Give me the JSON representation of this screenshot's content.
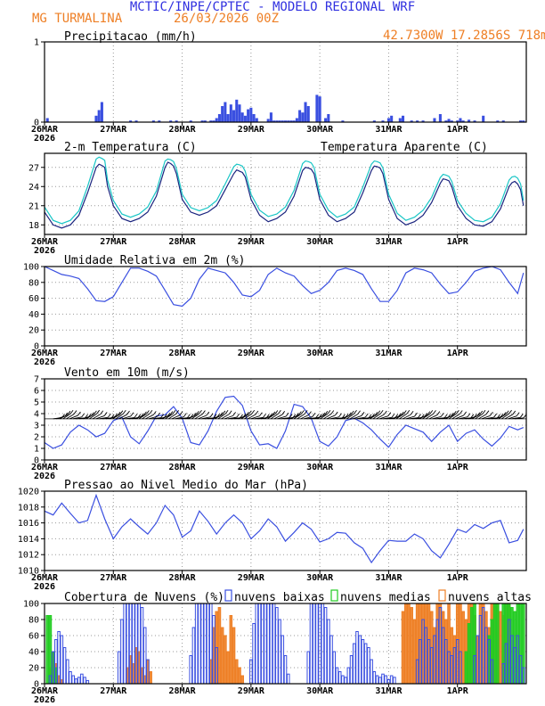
{
  "header": {
    "title": "MCTIC/INPE/CPTEC - MODELO REGIONAL WRF",
    "location": "MG TURMALINA",
    "run": "26/03/2026 00Z",
    "coords": "42.7300W 17.2856S 718m"
  },
  "colors": {
    "title": "#3030e0",
    "orange": "#ee7f25",
    "blue": "#3a4fe0",
    "navy": "#1a237e",
    "cyan": "#19c6c6",
    "green": "#22cc22",
    "grid": "#999999"
  },
  "x_axis": {
    "ticks": [
      "26MAR",
      "27MAR",
      "28MAR",
      "29MAR",
      "30MAR",
      "31MAR",
      "1APR"
    ],
    "year": "2026",
    "hours_per_tick": 24,
    "total_hours": 168
  },
  "chart_data": [
    {
      "id": "precip",
      "type": "bar",
      "title": "Precipitacao (mm/h)",
      "ylim": [
        0,
        1
      ],
      "yticks": [
        "0",
        "1"
      ],
      "x_hours": [
        1,
        18,
        19,
        20,
        30,
        32,
        38,
        40,
        44,
        46,
        51,
        55,
        56,
        58,
        59,
        60,
        61,
        62,
        63,
        64,
        65,
        66,
        67,
        68,
        69,
        70,
        71,
        72,
        73,
        74,
        78,
        79,
        80,
        81,
        82,
        83,
        84,
        85,
        86,
        87,
        88,
        89,
        90,
        91,
        92,
        95,
        96,
        98,
        99,
        104,
        115,
        118,
        120,
        121,
        124,
        125,
        128,
        130,
        132,
        136,
        138,
        140,
        141,
        142,
        144,
        145,
        146,
        148,
        150,
        153,
        158,
        160,
        166,
        167
      ],
      "values": [
        0.05,
        0.08,
        0.15,
        0.25,
        0.02,
        0.02,
        0.02,
        0.02,
        0.02,
        0.02,
        0.02,
        0.02,
        0.02,
        0.02,
        0.02,
        0.05,
        0.1,
        0.2,
        0.25,
        0.1,
        0.22,
        0.15,
        0.28,
        0.22,
        0.12,
        0.08,
        0.16,
        0.18,
        0.1,
        0.05,
        0.04,
        0.12,
        0.02,
        0.02,
        0.02,
        0.02,
        0.02,
        0.02,
        0.02,
        0.02,
        0.05,
        0.15,
        0.12,
        0.25,
        0.2,
        0.34,
        0.32,
        0.05,
        0.1,
        0.02,
        0.02,
        0.02,
        0.05,
        0.08,
        0.05,
        0.08,
        0.02,
        0.02,
        0.02,
        0.05,
        0.1,
        0.02,
        0.04,
        0.02,
        0.02,
        0.05,
        0.02,
        0.03,
        0.02,
        0.08,
        0.02,
        0.02,
        0.02,
        0.02
      ]
    },
    {
      "id": "temp",
      "type": "line",
      "title": "2-m Temperatura (C)",
      "legend": "Temperatura Aparente (C)",
      "ylim": [
        16.5,
        29.2
      ],
      "yticks": [
        "18",
        "21",
        "24",
        "27"
      ],
      "x_hours": [
        0,
        3,
        6,
        9,
        12,
        15,
        18,
        19,
        20,
        21,
        22,
        24,
        27,
        30,
        33,
        36,
        39,
        42,
        43,
        44,
        45,
        46,
        48,
        51,
        54,
        57,
        60,
        63,
        66,
        67,
        68,
        69,
        70,
        72,
        75,
        78,
        81,
        84,
        87,
        90,
        91,
        92,
        93,
        94,
        96,
        99,
        102,
        105,
        108,
        111,
        114,
        115,
        116,
        117,
        118,
        120,
        123,
        126,
        129,
        132,
        135,
        138,
        139,
        140,
        141,
        142,
        144,
        147,
        150,
        153,
        156,
        159,
        162,
        163,
        164,
        165,
        166,
        167
      ],
      "series": [
        {
          "name": "2-m Temperatura (C)",
          "values": [
            20,
            18,
            17.5,
            18,
            19.5,
            23,
            27.0,
            27.5,
            27.3,
            27.0,
            24,
            21,
            19,
            18.5,
            19,
            20,
            22.5,
            27.0,
            27.8,
            27.6,
            27.2,
            26,
            22,
            20,
            19.5,
            20,
            21,
            23.5,
            26.0,
            26.6,
            26.4,
            26.2,
            25.5,
            22,
            19.5,
            18.5,
            19,
            20,
            22.5,
            26.5,
            27.0,
            26.9,
            26.7,
            26,
            22,
            19.5,
            18.5,
            19,
            20,
            23,
            26.5,
            27.2,
            27.1,
            26.9,
            26,
            22,
            19,
            18,
            18.5,
            19.5,
            21.5,
            24.5,
            25.2,
            25.1,
            24.9,
            24,
            21,
            19,
            18,
            17.8,
            18.5,
            20.5,
            24.0,
            24.6,
            24.8,
            24.4,
            23.5,
            21
          ]
        },
        {
          "name": "Temperatura Aparente (C)",
          "values": [
            20.8,
            18.7,
            18.2,
            18.7,
            20.2,
            24,
            28.3,
            28.6,
            28.4,
            28.1,
            25,
            21.8,
            19.7,
            19.2,
            19.7,
            20.8,
            23.3,
            28.0,
            28.3,
            28.2,
            27.9,
            26.8,
            22.8,
            20.7,
            20.2,
            20.7,
            21.8,
            24.4,
            27.1,
            27.5,
            27.4,
            27.2,
            26.4,
            22.8,
            20.3,
            19.3,
            19.7,
            20.8,
            23.4,
            27.6,
            28.0,
            27.9,
            27.7,
            27.0,
            22.8,
            20.3,
            19.2,
            19.7,
            20.8,
            23.9,
            27.5,
            28.0,
            27.9,
            27.7,
            26.9,
            22.8,
            19.8,
            18.7,
            19.2,
            20.3,
            22.3,
            25.4,
            25.9,
            25.8,
            25.6,
            24.8,
            21.8,
            19.8,
            18.7,
            18.5,
            19.2,
            21.3,
            25.0,
            25.5,
            25.6,
            25.3,
            24.4,
            21.8
          ]
        }
      ]
    },
    {
      "id": "rh",
      "type": "line",
      "title": "Umidade Relativa em 2m (%)",
      "ylim": [
        0,
        100
      ],
      "yticks": [
        "0",
        "20",
        "40",
        "60",
        "80",
        "100"
      ],
      "x_hours": [
        0,
        3,
        6,
        9,
        12,
        15,
        18,
        21,
        24,
        27,
        30,
        33,
        36,
        39,
        42,
        45,
        48,
        51,
        54,
        57,
        60,
        63,
        66,
        69,
        72,
        75,
        78,
        81,
        84,
        87,
        90,
        93,
        96,
        99,
        102,
        105,
        108,
        111,
        114,
        117,
        120,
        123,
        126,
        129,
        132,
        135,
        138,
        141,
        144,
        147,
        150,
        153,
        156,
        159,
        162,
        165,
        167
      ],
      "values": [
        100,
        95,
        90,
        88,
        85,
        72,
        57,
        56,
        62,
        80,
        98,
        98,
        94,
        88,
        70,
        52,
        50,
        60,
        84,
        98,
        95,
        92,
        80,
        64,
        62,
        70,
        90,
        98,
        92,
        88,
        76,
        66,
        70,
        80,
        95,
        98,
        95,
        90,
        72,
        56,
        56,
        70,
        92,
        98,
        96,
        92,
        78,
        66,
        68,
        80,
        94,
        98,
        100,
        96,
        80,
        66,
        92
      ]
    },
    {
      "id": "wind",
      "type": "line",
      "title": "Vento em 10m (m/s)",
      "ylim": [
        0,
        7
      ],
      "yticks": [
        "0",
        "1",
        "2",
        "3",
        "4",
        "5",
        "6",
        "7"
      ],
      "x_hours": [
        0,
        3,
        6,
        9,
        12,
        15,
        18,
        21,
        24,
        27,
        30,
        33,
        36,
        39,
        42,
        45,
        48,
        51,
        54,
        57,
        60,
        63,
        66,
        69,
        72,
        75,
        78,
        81,
        84,
        87,
        90,
        93,
        96,
        99,
        102,
        105,
        108,
        111,
        114,
        117,
        120,
        123,
        126,
        129,
        132,
        135,
        138,
        141,
        144,
        147,
        150,
        153,
        156,
        159,
        162,
        165,
        167
      ],
      "values": [
        1.5,
        1.0,
        1.3,
        2.4,
        3.0,
        2.6,
        2.0,
        2.3,
        3.4,
        3.7,
        2.0,
        1.4,
        2.5,
        3.8,
        3.9,
        4.6,
        3.6,
        1.5,
        1.3,
        2.5,
        4.2,
        5.4,
        5.5,
        4.7,
        2.5,
        1.3,
        1.4,
        1.0,
        2.5,
        4.8,
        4.6,
        3.6,
        1.6,
        1.2,
        2.0,
        3.4,
        3.6,
        3.2,
        2.6,
        1.8,
        1.1,
        2.2,
        3.0,
        2.7,
        2.4,
        1.6,
        2.4,
        3.0,
        1.6,
        2.3,
        2.6,
        1.8,
        1.2,
        1.9,
        2.9,
        2.6,
        2.8
      ]
    },
    {
      "id": "pressure",
      "type": "line",
      "title": "Pressao ao Nivel Medio do Mar (hPa)",
      "ylim": [
        1010,
        1020
      ],
      "yticks": [
        "1010",
        "1012",
        "1014",
        "1016",
        "1018",
        "1020"
      ],
      "x_hours": [
        0,
        3,
        6,
        9,
        12,
        15,
        18,
        21,
        24,
        27,
        30,
        33,
        36,
        39,
        42,
        45,
        48,
        51,
        54,
        57,
        60,
        63,
        66,
        69,
        72,
        75,
        78,
        81,
        84,
        87,
        90,
        93,
        96,
        99,
        102,
        105,
        108,
        111,
        114,
        117,
        120,
        123,
        126,
        129,
        132,
        135,
        138,
        141,
        144,
        147,
        150,
        153,
        156,
        159,
        162,
        165,
        167
      ],
      "values": [
        1017.5,
        1017.0,
        1018.5,
        1017.2,
        1016.0,
        1016.3,
        1019.5,
        1016.5,
        1014.0,
        1015.5,
        1016.5,
        1015.5,
        1014.6,
        1016.0,
        1018.2,
        1017.0,
        1014.2,
        1015.0,
        1017.5,
        1016.2,
        1014.6,
        1016.0,
        1017.0,
        1016.0,
        1014.0,
        1015.0,
        1016.5,
        1015.5,
        1013.7,
        1014.8,
        1016.0,
        1015.2,
        1013.6,
        1014.0,
        1014.8,
        1014.7,
        1013.5,
        1012.8,
        1011.0,
        1012.5,
        1013.8,
        1013.7,
        1013.7,
        1014.6,
        1014.0,
        1012.5,
        1011.6,
        1013.3,
        1015.2,
        1014.8,
        1015.8,
        1015.3,
        1016.0,
        1016.3,
        1013.5,
        1013.8,
        1015.2
      ]
    },
    {
      "id": "clouds",
      "type": "bar",
      "title": "Cobertura de Nuvens (%)",
      "ylim": [
        0,
        100
      ],
      "yticks": [
        "0",
        "20",
        "40",
        "60",
        "80",
        "100"
      ],
      "legend": [
        "nuvens baixas",
        "nuvens medias",
        "nuvens altas"
      ],
      "series": [
        {
          "name": "nuvens baixas",
          "color": "blue",
          "x_hours": [
            2,
            3,
            4,
            5,
            6,
            7,
            8,
            9,
            10,
            11,
            12,
            13,
            14,
            15,
            26,
            27,
            28,
            29,
            30,
            31,
            32,
            33,
            34,
            35,
            36,
            51,
            52,
            53,
            54,
            55,
            56,
            57,
            58,
            59,
            60,
            72,
            73,
            74,
            75,
            76,
            77,
            78,
            79,
            80,
            81,
            82,
            83,
            84,
            85,
            92,
            93,
            94,
            95,
            96,
            97,
            98,
            99,
            100,
            101,
            102,
            103,
            104,
            105,
            106,
            107,
            108,
            109,
            110,
            111,
            112,
            113,
            114,
            115,
            116,
            117,
            118,
            119,
            120,
            121,
            122,
            130,
            131,
            132,
            133,
            134,
            135,
            136,
            137,
            138,
            139,
            140,
            141,
            142,
            143,
            144,
            145,
            150,
            151,
            152,
            153,
            154,
            155,
            156,
            160,
            161,
            162,
            163,
            164,
            165,
            166,
            167
          ],
          "values": [
            10,
            40,
            55,
            65,
            60,
            45,
            30,
            15,
            10,
            6,
            8,
            12,
            8,
            4,
            40,
            80,
            100,
            100,
            100,
            100,
            100,
            100,
            95,
            70,
            30,
            35,
            70,
            100,
            100,
            100,
            100,
            100,
            100,
            85,
            45,
            30,
            75,
            100,
            100,
            100,
            100,
            100,
            100,
            100,
            95,
            80,
            60,
            35,
            12,
            40,
            100,
            100,
            100,
            100,
            100,
            95,
            80,
            60,
            40,
            20,
            15,
            10,
            8,
            20,
            35,
            50,
            65,
            60,
            55,
            50,
            45,
            30,
            15,
            10,
            8,
            12,
            10,
            5,
            10,
            8,
            30,
            55,
            80,
            70,
            55,
            45,
            60,
            80,
            95,
            70,
            55,
            40,
            35,
            45,
            55,
            40,
            35,
            60,
            85,
            95,
            70,
            55,
            30,
            25,
            50,
            80,
            60,
            45,
            60,
            35,
            20
          ]
        },
        {
          "name": "nuvens medias",
          "color": "green",
          "x_hours": [
            1,
            2,
            3,
            4,
            147,
            148,
            149,
            150,
            155,
            156,
            157,
            158,
            160,
            161,
            162,
            163,
            164,
            165,
            166,
            167
          ],
          "values": [
            85,
            85,
            40,
            20,
            40,
            75,
            95,
            100,
            60,
            80,
            100,
            100,
            100,
            100,
            100,
            95,
            90,
            100,
            100,
            100
          ]
        },
        {
          "name": "nuvens altas",
          "color": "orange",
          "x_hours": [
            2,
            3,
            4,
            5,
            6,
            29,
            30,
            31,
            32,
            33,
            34,
            35,
            36,
            37,
            58,
            59,
            60,
            61,
            62,
            63,
            64,
            65,
            66,
            67,
            68,
            69,
            125,
            126,
            127,
            128,
            129,
            130,
            131,
            132,
            133,
            134,
            135,
            136,
            137,
            138,
            139,
            140,
            141,
            142,
            143,
            144,
            145,
            146,
            147,
            148,
            149,
            150,
            151,
            152,
            153,
            154,
            155,
            156,
            157,
            158,
            159,
            160,
            161,
            162
          ],
          "values": [
            20,
            40,
            25,
            10,
            5,
            20,
            35,
            25,
            45,
            40,
            20,
            10,
            30,
            15,
            30,
            70,
            90,
            95,
            70,
            60,
            40,
            85,
            70,
            30,
            20,
            10,
            90,
            100,
            100,
            95,
            80,
            100,
            100,
            100,
            100,
            100,
            90,
            70,
            100,
            100,
            90,
            80,
            100,
            70,
            60,
            100,
            100,
            90,
            80,
            100,
            100,
            85,
            60,
            100,
            100,
            90,
            70,
            100,
            100,
            100,
            90,
            85,
            100,
            100
          ]
        }
      ]
    }
  ]
}
